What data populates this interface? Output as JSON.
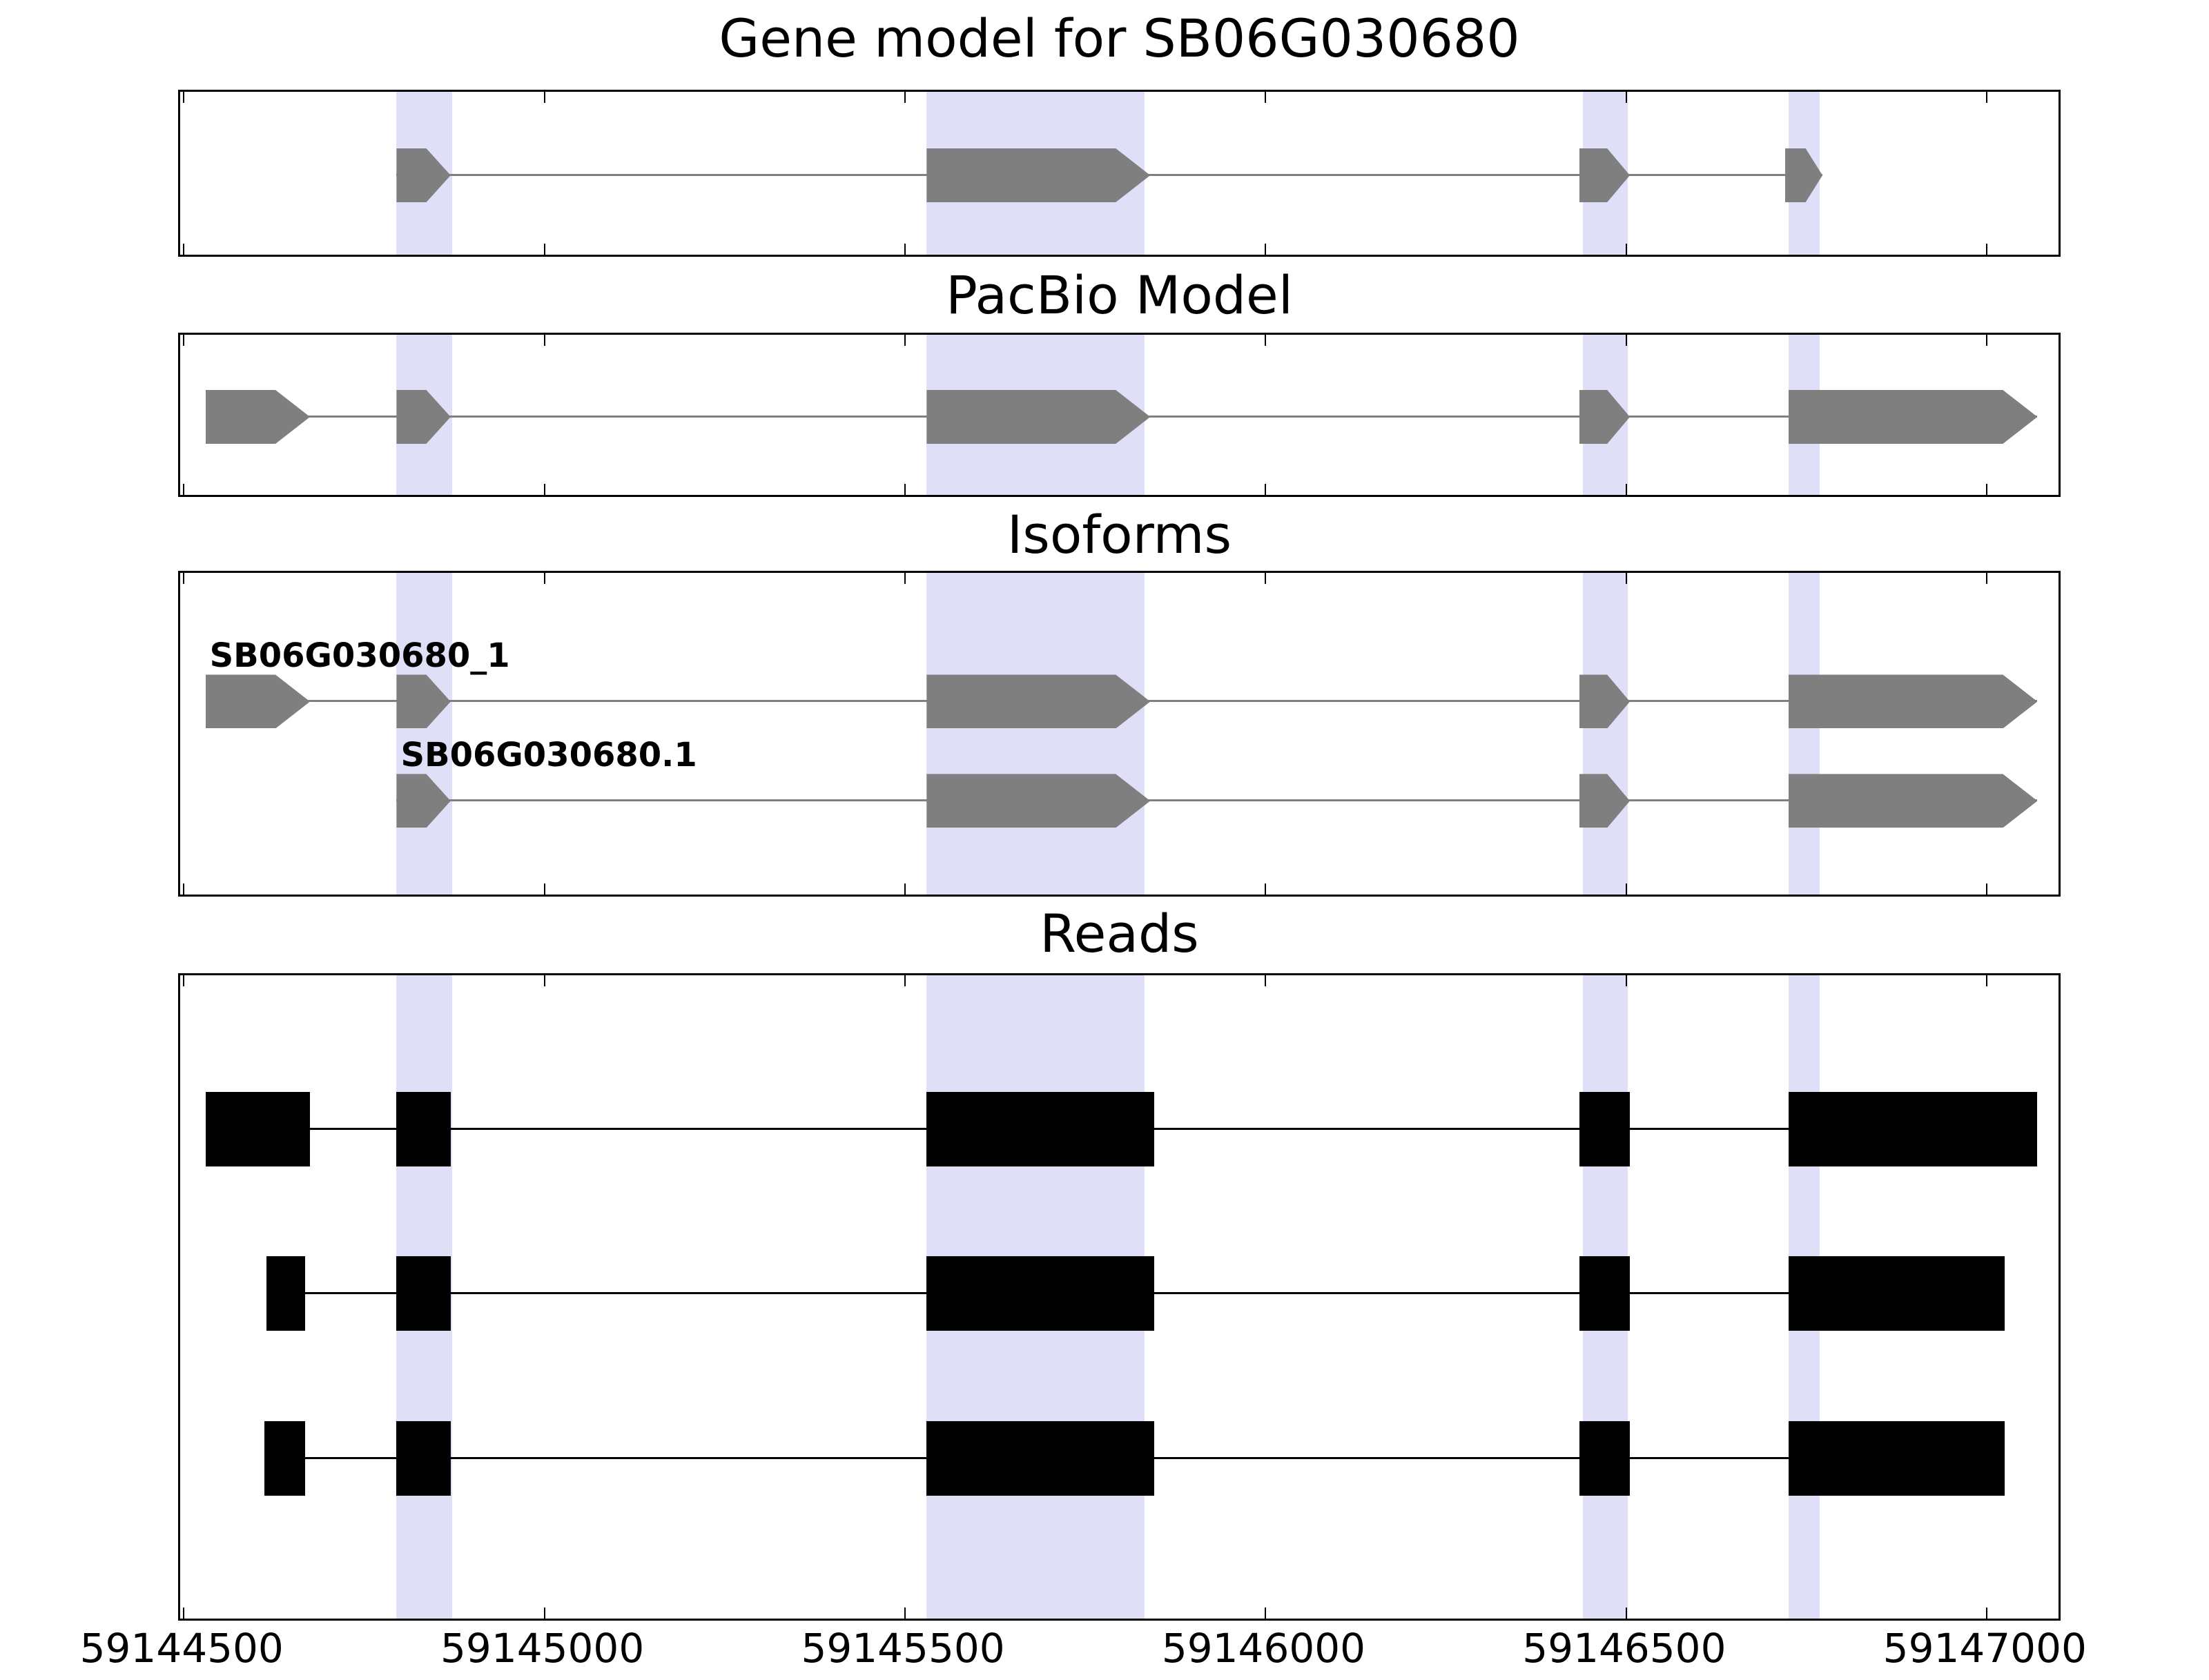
{
  "figure_title": "Gene model for SB06G030680",
  "chart_data": {
    "type": "genome-browser-tracks",
    "x_axis": {
      "min": 59144495,
      "max": 59147105,
      "ticks": [
        59144500,
        59145000,
        59145500,
        59146000,
        59146500,
        59147000
      ],
      "tick_labels": [
        "59144500",
        "59145000",
        "59145500",
        "59146000",
        "59146500",
        "59147000"
      ]
    },
    "highlight_color": "#dfdff8",
    "feature_gray": "#7f7f7f",
    "feature_black": "#000000",
    "highlight_regions": [
      {
        "start": 59144795,
        "end": 59144872
      },
      {
        "start": 59145530,
        "end": 59145832
      },
      {
        "start": 59146440,
        "end": 59146502
      },
      {
        "start": 59146725,
        "end": 59146768
      }
    ],
    "panels": [
      {
        "title": "Gene model for SB06G030680",
        "feature_color": "#7f7f7f",
        "feature_style": "arrow",
        "strand": "+",
        "tracks": [
          {
            "label": "",
            "exons": [
              {
                "start": 59144795,
                "end": 59144870
              },
              {
                "start": 59145530,
                "end": 59145840
              },
              {
                "start": 59146435,
                "end": 59146505
              },
              {
                "start": 59146720,
                "end": 59146772
              }
            ]
          }
        ]
      },
      {
        "title": "PacBio Model",
        "feature_color": "#7f7f7f",
        "feature_style": "arrow",
        "strand": "+",
        "tracks": [
          {
            "label": "",
            "exons": [
              {
                "start": 59144530,
                "end": 59144675
              },
              {
                "start": 59144795,
                "end": 59144870
              },
              {
                "start": 59145530,
                "end": 59145840
              },
              {
                "start": 59146435,
                "end": 59146505
              },
              {
                "start": 59146725,
                "end": 59147070
              }
            ]
          }
        ]
      },
      {
        "title": "Isoforms",
        "feature_color": "#7f7f7f",
        "feature_style": "arrow",
        "strand": "+",
        "tracks": [
          {
            "label": "SB06G030680_1",
            "exons": [
              {
                "start": 59144530,
                "end": 59144675
              },
              {
                "start": 59144795,
                "end": 59144870
              },
              {
                "start": 59145530,
                "end": 59145840
              },
              {
                "start": 59146435,
                "end": 59146505
              },
              {
                "start": 59146725,
                "end": 59147070
              }
            ]
          },
          {
            "label": "SB06G030680.1",
            "exons": [
              {
                "start": 59144795,
                "end": 59144870
              },
              {
                "start": 59145530,
                "end": 59145840
              },
              {
                "start": 59146435,
                "end": 59146505
              },
              {
                "start": 59146725,
                "end": 59147070
              }
            ]
          }
        ]
      },
      {
        "title": "Reads",
        "feature_color": "#000000",
        "feature_style": "rect",
        "tracks": [
          {
            "label": "",
            "exons": [
              {
                "start": 59144530,
                "end": 59144675
              },
              {
                "start": 59144795,
                "end": 59144870
              },
              {
                "start": 59145530,
                "end": 59145845
              },
              {
                "start": 59146435,
                "end": 59146505
              },
              {
                "start": 59146725,
                "end": 59147070
              }
            ]
          },
          {
            "label": "",
            "exons": [
              {
                "start": 59144615,
                "end": 59144668
              },
              {
                "start": 59144795,
                "end": 59144870
              },
              {
                "start": 59145530,
                "end": 59145845
              },
              {
                "start": 59146435,
                "end": 59146505
              },
              {
                "start": 59146725,
                "end": 59147025
              }
            ]
          },
          {
            "label": "",
            "exons": [
              {
                "start": 59144612,
                "end": 59144668
              },
              {
                "start": 59144795,
                "end": 59144870
              },
              {
                "start": 59145530,
                "end": 59145845
              },
              {
                "start": 59146435,
                "end": 59146505
              },
              {
                "start": 59146725,
                "end": 59147025
              }
            ]
          }
        ]
      }
    ]
  }
}
